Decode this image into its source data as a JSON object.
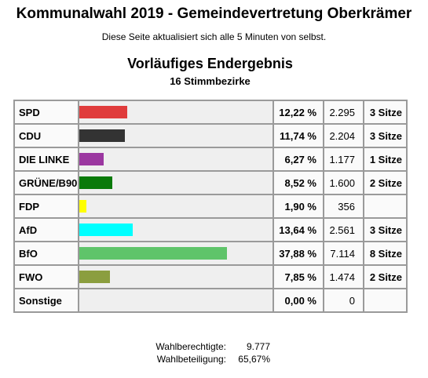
{
  "page_title": "Kommunalwahl 2019 - Gemeindevertretung Oberkrämer",
  "refresh_note": "Diese Seite aktualisiert sich alle 5 Minuten von selbst.",
  "result_heading": "Vorläufiges Endergebnis",
  "districts": "16 Stimmbezirke",
  "chart_data": {
    "type": "bar",
    "orientation": "horizontal",
    "title": "Vorläufiges Endergebnis",
    "subtitle": "16 Stimmbezirke",
    "xlim": [
      0,
      50
    ],
    "categories": [
      "SPD",
      "CDU",
      "DIE LINKE",
      "GRÜNE/B90",
      "FDP",
      "AfD",
      "BfO",
      "FWO",
      "Sonstige"
    ],
    "values": [
      12.22,
      11.74,
      6.27,
      8.52,
      1.9,
      13.64,
      37.88,
      7.85,
      0.0
    ],
    "percent_labels": [
      "12,22 %",
      "11,74 %",
      "6,27 %",
      "8,52 %",
      "1,90 %",
      "13,64 %",
      "37,88 %",
      "7,85 %",
      "0,00 %"
    ],
    "votes": [
      "2.295",
      "2.204",
      "1.177",
      "1.600",
      "356",
      "2.561",
      "7.114",
      "1.474",
      "0"
    ],
    "seats": [
      "3 Sitze",
      "3 Sitze",
      "1 Sitze",
      "2 Sitze",
      "",
      "3 Sitze",
      "8 Sitze",
      "2 Sitze",
      ""
    ],
    "colors": [
      "#e03c3c",
      "#333333",
      "#9b37a0",
      "#0a7a0a",
      "#ffff00",
      "#00ffff",
      "#5fc46a",
      "#8b9e3f",
      "#cccccc"
    ]
  },
  "stats": {
    "eligible_label": "Wahlberechtigte:",
    "eligible_value": "9.777",
    "turnout_label": "Wahlbeteiligung:",
    "turnout_value": "65,67%"
  }
}
